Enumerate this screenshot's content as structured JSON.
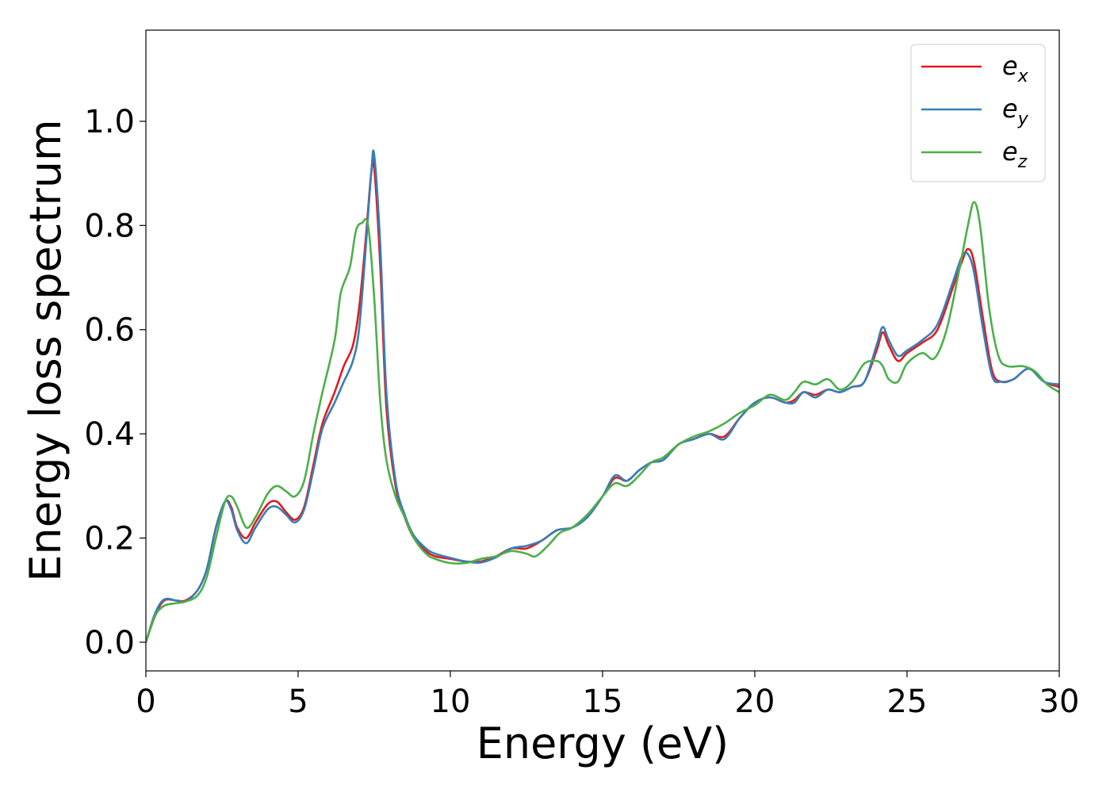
{
  "chart_data": {
    "type": "line",
    "title": "",
    "xlabel": "Energy (eV)",
    "ylabel": "Energy loss spectrum",
    "xlim": [
      0,
      30
    ],
    "ylim": [
      -0.055,
      1.175
    ],
    "xticks": [
      0,
      5,
      10,
      15,
      20,
      25,
      30
    ],
    "xtick_labels": [
      "0",
      "5",
      "10",
      "15",
      "20",
      "25",
      "30"
    ],
    "yticks": [
      0.0,
      0.2,
      0.4,
      0.6,
      0.8,
      1.0
    ],
    "ytick_labels": [
      "0.0",
      "0.2",
      "0.4",
      "0.6",
      "0.8",
      "1.0"
    ],
    "grid": false,
    "legend_position": "top-right",
    "series": [
      {
        "name": "ex",
        "label_main": "e",
        "label_sub": "x",
        "color": "#e41a1c",
        "points": [
          [
            0,
            0.0
          ],
          [
            0.3,
            0.05
          ],
          [
            0.6,
            0.08
          ],
          [
            1.0,
            0.08
          ],
          [
            1.3,
            0.08
          ],
          [
            1.7,
            0.1
          ],
          [
            2.0,
            0.14
          ],
          [
            2.3,
            0.22
          ],
          [
            2.6,
            0.27
          ],
          [
            2.8,
            0.26
          ],
          [
            3.0,
            0.22
          ],
          [
            3.3,
            0.2
          ],
          [
            3.6,
            0.23
          ],
          [
            4.0,
            0.265
          ],
          [
            4.3,
            0.27
          ],
          [
            4.6,
            0.25
          ],
          [
            4.9,
            0.235
          ],
          [
            5.2,
            0.26
          ],
          [
            5.5,
            0.34
          ],
          [
            5.8,
            0.42
          ],
          [
            6.2,
            0.48
          ],
          [
            6.5,
            0.53
          ],
          [
            6.8,
            0.57
          ],
          [
            7.0,
            0.64
          ],
          [
            7.2,
            0.76
          ],
          [
            7.4,
            0.9
          ],
          [
            7.5,
            0.91
          ],
          [
            7.7,
            0.72
          ],
          [
            7.9,
            0.45
          ],
          [
            8.2,
            0.3
          ],
          [
            8.5,
            0.24
          ],
          [
            8.8,
            0.2
          ],
          [
            9.2,
            0.175
          ],
          [
            9.5,
            0.165
          ],
          [
            10.0,
            0.16
          ],
          [
            10.5,
            0.155
          ],
          [
            11.0,
            0.155
          ],
          [
            11.5,
            0.165
          ],
          [
            12.0,
            0.18
          ],
          [
            12.5,
            0.18
          ],
          [
            13.0,
            0.195
          ],
          [
            13.5,
            0.215
          ],
          [
            14.0,
            0.22
          ],
          [
            14.5,
            0.24
          ],
          [
            15.0,
            0.28
          ],
          [
            15.4,
            0.315
          ],
          [
            15.8,
            0.31
          ],
          [
            16.2,
            0.33
          ],
          [
            16.6,
            0.345
          ],
          [
            17.0,
            0.35
          ],
          [
            17.5,
            0.38
          ],
          [
            18.0,
            0.39
          ],
          [
            18.5,
            0.4
          ],
          [
            19.0,
            0.395
          ],
          [
            19.5,
            0.43
          ],
          [
            20.0,
            0.46
          ],
          [
            20.5,
            0.47
          ],
          [
            21.0,
            0.46
          ],
          [
            21.3,
            0.465
          ],
          [
            21.6,
            0.48
          ],
          [
            22.0,
            0.475
          ],
          [
            22.4,
            0.485
          ],
          [
            22.8,
            0.48
          ],
          [
            23.2,
            0.49
          ],
          [
            23.6,
            0.5
          ],
          [
            24.0,
            0.56
          ],
          [
            24.2,
            0.595
          ],
          [
            24.4,
            0.57
          ],
          [
            24.7,
            0.54
          ],
          [
            25.0,
            0.555
          ],
          [
            25.5,
            0.575
          ],
          [
            26.0,
            0.6
          ],
          [
            26.5,
            0.68
          ],
          [
            26.8,
            0.73
          ],
          [
            27.0,
            0.755
          ],
          [
            27.2,
            0.73
          ],
          [
            27.5,
            0.62
          ],
          [
            27.8,
            0.52
          ],
          [
            28.1,
            0.5
          ],
          [
            28.5,
            0.505
          ],
          [
            29.0,
            0.525
          ],
          [
            29.5,
            0.5
          ],
          [
            30.0,
            0.49
          ]
        ]
      },
      {
        "name": "ey",
        "label_main": "e",
        "label_sub": "y",
        "color": "#377eb8",
        "points": [
          [
            0,
            0.0
          ],
          [
            0.3,
            0.055
          ],
          [
            0.6,
            0.082
          ],
          [
            1.0,
            0.08
          ],
          [
            1.3,
            0.078
          ],
          [
            1.7,
            0.1
          ],
          [
            2.0,
            0.14
          ],
          [
            2.3,
            0.22
          ],
          [
            2.6,
            0.27
          ],
          [
            2.8,
            0.255
          ],
          [
            3.0,
            0.215
          ],
          [
            3.3,
            0.19
          ],
          [
            3.6,
            0.22
          ],
          [
            4.0,
            0.255
          ],
          [
            4.3,
            0.26
          ],
          [
            4.6,
            0.245
          ],
          [
            4.9,
            0.23
          ],
          [
            5.2,
            0.255
          ],
          [
            5.5,
            0.33
          ],
          [
            5.8,
            0.41
          ],
          [
            6.2,
            0.46
          ],
          [
            6.5,
            0.5
          ],
          [
            6.8,
            0.54
          ],
          [
            7.0,
            0.6
          ],
          [
            7.2,
            0.74
          ],
          [
            7.4,
            0.9
          ],
          [
            7.5,
            0.935
          ],
          [
            7.7,
            0.76
          ],
          [
            7.9,
            0.48
          ],
          [
            8.2,
            0.31
          ],
          [
            8.5,
            0.245
          ],
          [
            8.8,
            0.205
          ],
          [
            9.2,
            0.18
          ],
          [
            9.5,
            0.17
          ],
          [
            10.0,
            0.162
          ],
          [
            10.5,
            0.155
          ],
          [
            11.0,
            0.153
          ],
          [
            11.5,
            0.163
          ],
          [
            12.0,
            0.18
          ],
          [
            12.5,
            0.185
          ],
          [
            13.0,
            0.195
          ],
          [
            13.5,
            0.215
          ],
          [
            14.0,
            0.22
          ],
          [
            14.5,
            0.24
          ],
          [
            15.0,
            0.28
          ],
          [
            15.4,
            0.32
          ],
          [
            15.8,
            0.31
          ],
          [
            16.2,
            0.33
          ],
          [
            16.6,
            0.345
          ],
          [
            17.0,
            0.35
          ],
          [
            17.5,
            0.38
          ],
          [
            18.0,
            0.39
          ],
          [
            18.5,
            0.4
          ],
          [
            19.0,
            0.39
          ],
          [
            19.5,
            0.43
          ],
          [
            20.0,
            0.46
          ],
          [
            20.5,
            0.47
          ],
          [
            21.0,
            0.46
          ],
          [
            21.3,
            0.46
          ],
          [
            21.6,
            0.48
          ],
          [
            22.0,
            0.47
          ],
          [
            22.4,
            0.485
          ],
          [
            22.8,
            0.48
          ],
          [
            23.2,
            0.49
          ],
          [
            23.6,
            0.5
          ],
          [
            24.0,
            0.57
          ],
          [
            24.2,
            0.605
          ],
          [
            24.4,
            0.58
          ],
          [
            24.7,
            0.55
          ],
          [
            25.0,
            0.56
          ],
          [
            25.5,
            0.58
          ],
          [
            26.0,
            0.61
          ],
          [
            26.5,
            0.69
          ],
          [
            26.8,
            0.74
          ],
          [
            27.0,
            0.745
          ],
          [
            27.2,
            0.71
          ],
          [
            27.5,
            0.6
          ],
          [
            27.8,
            0.51
          ],
          [
            28.1,
            0.5
          ],
          [
            28.5,
            0.505
          ],
          [
            29.0,
            0.525
          ],
          [
            29.5,
            0.5
          ],
          [
            30.0,
            0.495
          ]
        ]
      },
      {
        "name": "ez",
        "label_main": "e",
        "label_sub": "z",
        "color": "#4daf4a",
        "points": [
          [
            0,
            0.0
          ],
          [
            0.3,
            0.05
          ],
          [
            0.6,
            0.07
          ],
          [
            1.0,
            0.075
          ],
          [
            1.3,
            0.078
          ],
          [
            1.7,
            0.09
          ],
          [
            2.0,
            0.125
          ],
          [
            2.3,
            0.2
          ],
          [
            2.6,
            0.27
          ],
          [
            2.8,
            0.28
          ],
          [
            3.0,
            0.26
          ],
          [
            3.3,
            0.22
          ],
          [
            3.6,
            0.24
          ],
          [
            4.0,
            0.285
          ],
          [
            4.3,
            0.3
          ],
          [
            4.6,
            0.29
          ],
          [
            4.9,
            0.28
          ],
          [
            5.2,
            0.31
          ],
          [
            5.5,
            0.4
          ],
          [
            5.8,
            0.48
          ],
          [
            6.2,
            0.58
          ],
          [
            6.4,
            0.67
          ],
          [
            6.7,
            0.72
          ],
          [
            6.9,
            0.79
          ],
          [
            7.1,
            0.805
          ],
          [
            7.3,
            0.8
          ],
          [
            7.5,
            0.66
          ],
          [
            7.7,
            0.46
          ],
          [
            7.9,
            0.35
          ],
          [
            8.2,
            0.28
          ],
          [
            8.5,
            0.24
          ],
          [
            8.8,
            0.2
          ],
          [
            9.2,
            0.17
          ],
          [
            9.5,
            0.16
          ],
          [
            10.0,
            0.152
          ],
          [
            10.5,
            0.152
          ],
          [
            11.0,
            0.16
          ],
          [
            11.5,
            0.165
          ],
          [
            12.0,
            0.175
          ],
          [
            12.5,
            0.17
          ],
          [
            12.8,
            0.165
          ],
          [
            13.2,
            0.185
          ],
          [
            13.6,
            0.21
          ],
          [
            14.0,
            0.22
          ],
          [
            14.5,
            0.245
          ],
          [
            15.0,
            0.28
          ],
          [
            15.4,
            0.305
          ],
          [
            15.8,
            0.3
          ],
          [
            16.2,
            0.32
          ],
          [
            16.6,
            0.345
          ],
          [
            17.0,
            0.355
          ],
          [
            17.5,
            0.38
          ],
          [
            18.0,
            0.395
          ],
          [
            18.5,
            0.405
          ],
          [
            19.0,
            0.42
          ],
          [
            19.5,
            0.44
          ],
          [
            20.0,
            0.455
          ],
          [
            20.5,
            0.475
          ],
          [
            21.0,
            0.465
          ],
          [
            21.3,
            0.48
          ],
          [
            21.6,
            0.5
          ],
          [
            22.0,
            0.495
          ],
          [
            22.4,
            0.505
          ],
          [
            22.8,
            0.485
          ],
          [
            23.2,
            0.5
          ],
          [
            23.6,
            0.535
          ],
          [
            24.0,
            0.54
          ],
          [
            24.2,
            0.53
          ],
          [
            24.4,
            0.505
          ],
          [
            24.7,
            0.5
          ],
          [
            25.0,
            0.535
          ],
          [
            25.5,
            0.555
          ],
          [
            25.9,
            0.545
          ],
          [
            26.3,
            0.6
          ],
          [
            26.7,
            0.71
          ],
          [
            27.0,
            0.8
          ],
          [
            27.2,
            0.845
          ],
          [
            27.4,
            0.8
          ],
          [
            27.7,
            0.64
          ],
          [
            28.0,
            0.55
          ],
          [
            28.3,
            0.53
          ],
          [
            28.8,
            0.53
          ],
          [
            29.2,
            0.52
          ],
          [
            29.6,
            0.495
          ],
          [
            30.0,
            0.48
          ]
        ]
      }
    ]
  }
}
